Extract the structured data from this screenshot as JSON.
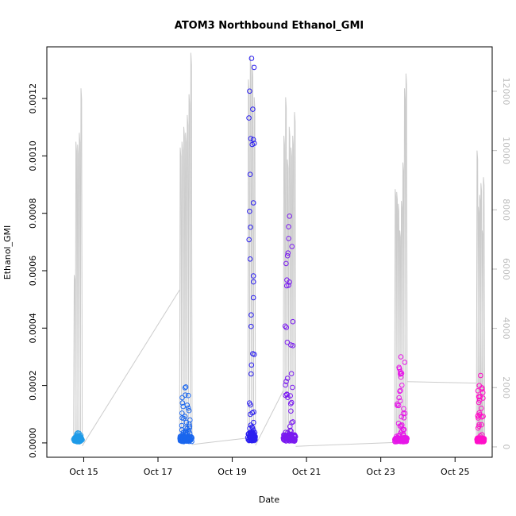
{
  "chart_data": {
    "type": "scatter",
    "title": "ATOM3 Northbound Ethanol_GMI",
    "xlabel": "Date",
    "ylabel": "Ethanol_GMI",
    "x_axis": {
      "unit": "date",
      "range": [
        "2017-10-14T00:10",
        "2017-10-26T00:00"
      ],
      "ticks": [
        {
          "value": "2017-10-15",
          "label": "Oct 15"
        },
        {
          "value": "2017-10-17",
          "label": "Oct 17"
        },
        {
          "value": "2017-10-19",
          "label": "Oct 19"
        },
        {
          "value": "2017-10-21",
          "label": "Oct 21"
        },
        {
          "value": "2017-10-23",
          "label": "Oct 23"
        },
        {
          "value": "2017-10-25",
          "label": "Oct 25"
        }
      ]
    },
    "y_left": {
      "range": [
        -5e-05,
        0.00138
      ],
      "ticks": [
        {
          "value": 0,
          "label": "0.0000"
        },
        {
          "value": 0.0002,
          "label": "0.0002"
        },
        {
          "value": 0.0004,
          "label": "0.0004"
        },
        {
          "value": 0.0006,
          "label": "0.0006"
        },
        {
          "value": 0.0008,
          "label": "0.0008"
        },
        {
          "value": 0.001,
          "label": "0.0010"
        },
        {
          "value": 0.0012,
          "label": "0.0012"
        }
      ]
    },
    "y_right": {
      "range": [
        -350,
        13500
      ],
      "ticks": [
        {
          "value": 0,
          "label": "0"
        },
        {
          "value": 2000,
          "label": "2000"
        },
        {
          "value": 4000,
          "label": "4000"
        },
        {
          "value": 6000,
          "label": "6000"
        },
        {
          "value": 8000,
          "label": "8000"
        },
        {
          "value": 10000,
          "label": "10000"
        },
        {
          "value": 12000,
          "label": "12000"
        }
      ]
    },
    "flights": [
      {
        "start": "2017-10-14T17:30",
        "end": "2017-10-14T23:00",
        "color": "#1e9be8",
        "max_y": 3.5e-05,
        "base_y": 1.2e-05
      },
      {
        "start": "2017-10-17T14:00",
        "end": "2017-10-17T22:00",
        "color": "#1a66ee",
        "max_y": 0.000195,
        "base_y": 1.5e-05
      },
      {
        "start": "2017-10-19T10:00",
        "end": "2017-10-19T15:00",
        "color": "#2b1ff0",
        "max_y": 0.00134,
        "base_y": 2.5e-05
      },
      {
        "start": "2017-10-20T09:00",
        "end": "2017-10-20T17:00",
        "color": "#7a1af0",
        "max_y": 0.00079,
        "base_y": 2e-05
      },
      {
        "start": "2017-10-23T09:00",
        "end": "2017-10-23T17:00",
        "color": "#e617e8",
        "max_y": 0.0003,
        "base_y": 1.2e-05
      },
      {
        "start": "2017-10-25T14:00",
        "end": "2017-10-25T19:00",
        "color": "#ff10c8",
        "max_y": 0.000235,
        "base_y": 1.2e-05
      }
    ],
    "altitude_series": {
      "axis": "right",
      "color": "#cccccc",
      "profiles": [
        {
          "start": "2017-10-14T17:30",
          "end": "2017-10-14T23:00",
          "peaks": [
            5800,
            10300,
            10200,
            10600,
            12100
          ]
        },
        {
          "start": "2017-10-17T14:00",
          "end": "2017-10-17T22:00",
          "peaks": [
            10100,
            10300,
            10800,
            10600,
            11200,
            11900,
            13300
          ]
        },
        {
          "start": "2017-10-19T10:00",
          "end": "2017-10-19T15:00",
          "peaks": [
            12400,
            13200,
            12900,
            11800
          ]
        },
        {
          "start": "2017-10-20T09:00",
          "end": "2017-10-20T17:00",
          "peaks": [
            10500,
            11800,
            9700,
            10800,
            10100,
            10500,
            11300
          ]
        },
        {
          "start": "2017-10-23T09:00",
          "end": "2017-10-23T17:00",
          "peaks": [
            8700,
            8600,
            8200,
            7300,
            8300,
            9600,
            12100,
            12600
          ]
        },
        {
          "start": "2017-10-25T14:00",
          "end": "2017-10-25T19:00",
          "peaks": [
            10000,
            8100,
            8500,
            8900,
            7300,
            9100
          ]
        }
      ],
      "connectors": [
        {
          "from": [
            "2017-10-14T23:00",
            30
          ],
          "to": [
            "2017-10-17T14:00",
            5300
          ]
        },
        {
          "from": [
            "2017-10-17T22:00",
            80
          ],
          "to": [
            "2017-10-19T10:00",
            300
          ]
        },
        {
          "from": [
            "2017-10-19T15:00",
            50
          ],
          "to": [
            "2017-10-20T09:00",
            1900
          ]
        },
        {
          "from": [
            "2017-10-20T17:00",
            20
          ],
          "to": [
            "2017-10-23T09:00",
            150
          ]
        },
        {
          "from": [
            "2017-10-23T17:00",
            2200
          ],
          "to": [
            "2017-10-25T14:00",
            2150
          ]
        }
      ]
    }
  }
}
